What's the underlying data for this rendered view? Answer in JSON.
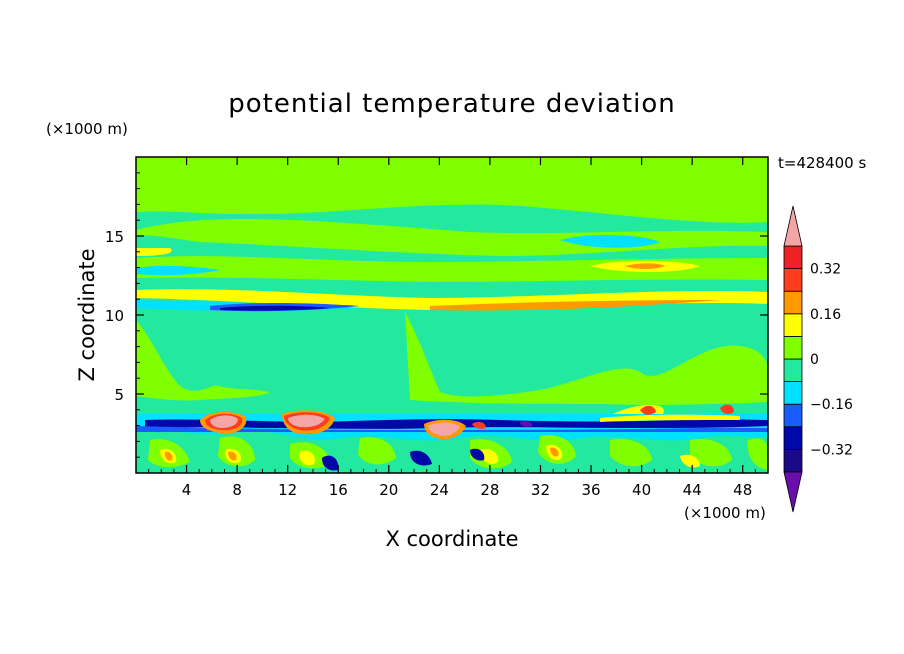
{
  "chart_data": {
    "type": "heatmap",
    "title": "potential temperature deviation",
    "time_label": "t=428400 s",
    "xlabel": "X coordinate",
    "ylabel": "Z coordinate",
    "x_unit": "(×1000 m)",
    "y_unit": "(×1000 m)",
    "xlim": [
      0,
      50
    ],
    "ylim": [
      0,
      20
    ],
    "x_ticks": [
      4,
      8,
      12,
      16,
      20,
      24,
      28,
      32,
      36,
      40,
      44,
      48
    ],
    "y_ticks": [
      5,
      10,
      15
    ],
    "x_tick_labels": [
      "4",
      "8",
      "12",
      "16",
      "20",
      "24",
      "28",
      "32",
      "36",
      "40",
      "44",
      "48"
    ],
    "y_tick_labels": [
      "5",
      "10",
      "15"
    ],
    "colorbar": {
      "levels": [
        -0.4,
        -0.32,
        -0.24,
        -0.16,
        -0.08,
        0,
        0.08,
        0.16,
        0.24,
        0.32,
        0.4
      ],
      "tick_values": [
        0.32,
        0.16,
        0,
        -0.16,
        -0.32
      ],
      "tick_labels": [
        "0.32",
        "0.16",
        "0",
        "−0.16",
        "−0.32"
      ],
      "colors_low_to_high": [
        "#1a0a88",
        "#0008aa",
        "#1a5cff",
        "#00e0ff",
        "#22e8a0",
        "#80ff00",
        "#ffff00",
        "#ff9900",
        "#ff3c1e",
        "#ee2222"
      ],
      "under_color": "#6a0dad",
      "over_color": "#f4a6a6"
    },
    "field_bands": [
      {
        "z": [
          0,
          3.0
        ],
        "value": "mixed -0.32 to 0.40, convective cells"
      },
      {
        "z": [
          3.0,
          3.7
        ],
        "value": -0.3
      },
      {
        "z": [
          3.7,
          10
        ],
        "value": 0.0
      },
      {
        "z": [
          10.2,
          10.6
        ],
        "value": -0.3
      },
      {
        "z": [
          10.6,
          12
        ],
        "value": 0.1
      },
      {
        "z": [
          12,
          14.5
        ],
        "value": 0.04
      },
      {
        "z": [
          14.5,
          20
        ],
        "value": 0.06
      }
    ]
  }
}
